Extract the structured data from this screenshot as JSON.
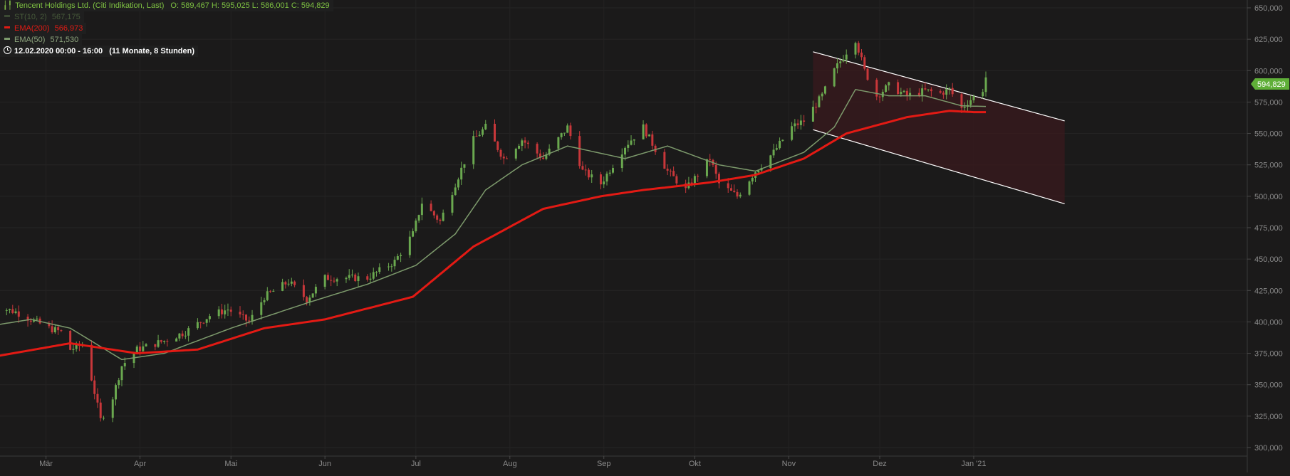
{
  "legend": {
    "title": "Tencent Holdings Ltd. (Citi Indikation, Last)",
    "ohlc": "O: 589,467  H: 595,025  L: 586,001  C: 594,829",
    "st_label": "ST(10, 2)",
    "st_value": "567,175",
    "ema200_label": "EMA(200)",
    "ema200_value": "566,973",
    "ema50_label": "EMA(50)",
    "ema50_value": "571,530",
    "period": "12.02.2020 00:00 - 16:00",
    "period_detail": "(11 Monate, 8 Stunden)"
  },
  "last_price_tag": "594,829",
  "colors": {
    "background": "#1b1a1a",
    "up": "#6aa84f",
    "down": "#c8373a",
    "ema200": "#e31a14",
    "ema50": "#7d9a6c",
    "channel": "#ffffff",
    "channel_fill": "#3a1a1e",
    "price_tag": "#5faf38"
  },
  "icons": {
    "ohlc": "candlestick-icon",
    "period": "clock-icon"
  },
  "chart_data": {
    "type": "candlestick",
    "x_start": "2020-02-12",
    "x_end": "2021-01-05",
    "xlabels": [
      "Mär",
      "Apr",
      "Mai",
      "Jun",
      "Jul",
      "Aug",
      "Sep",
      "Okt",
      "Nov",
      "Dez",
      "Jan '21"
    ],
    "xlabel_dates": [
      "2020-03-01",
      "2020-04-01",
      "2020-05-01",
      "2020-06-01",
      "2020-07-01",
      "2020-08-01",
      "2020-09-01",
      "2020-10-01",
      "2020-11-01",
      "2020-12-01",
      "2021-01-01"
    ],
    "ylim": [
      300000,
      650000
    ],
    "yticks": [
      300000,
      325000,
      350000,
      375000,
      400000,
      425000,
      450000,
      475000,
      500000,
      525000,
      550000,
      575000,
      600000,
      625000,
      650000
    ],
    "ytick_labels": [
      "300,000",
      "325,000",
      "350,000",
      "375,000",
      "400,000",
      "425,000",
      "450,000",
      "475,000",
      "500,000",
      "525,000",
      "550,000",
      "575,000",
      "600,000",
      "625,000",
      "650,000"
    ],
    "grid": true,
    "price_anchors": [
      [
        "2020-02-12",
        413
      ],
      [
        "2020-02-20",
        408
      ],
      [
        "2020-03-02",
        395
      ],
      [
        "2020-03-06",
        392
      ],
      [
        "2020-03-09",
        378
      ],
      [
        "2020-03-13",
        382
      ],
      [
        "2020-03-16",
        355
      ],
      [
        "2020-03-19",
        322
      ],
      [
        "2020-03-23",
        340
      ],
      [
        "2020-03-26",
        365
      ],
      [
        "2020-03-31",
        378
      ],
      [
        "2020-04-09",
        385
      ],
      [
        "2020-04-16",
        392
      ],
      [
        "2020-04-24",
        405
      ],
      [
        "2020-04-30",
        410
      ],
      [
        "2020-05-07",
        400
      ],
      [
        "2020-05-12",
        420
      ],
      [
        "2020-05-20",
        432
      ],
      [
        "2020-05-26",
        418
      ],
      [
        "2020-06-01",
        435
      ],
      [
        "2020-06-15",
        435
      ],
      [
        "2020-06-24",
        448
      ],
      [
        "2020-06-30",
        470
      ],
      [
        "2020-07-03",
        495
      ],
      [
        "2020-07-09",
        480
      ],
      [
        "2020-07-14",
        510
      ],
      [
        "2020-07-20",
        545
      ],
      [
        "2020-07-24",
        555
      ],
      [
        "2020-07-30",
        530
      ],
      [
        "2020-08-05",
        545
      ],
      [
        "2020-08-12",
        530
      ],
      [
        "2020-08-20",
        555
      ],
      [
        "2020-08-25",
        520
      ],
      [
        "2020-08-31",
        510
      ],
      [
        "2020-09-08",
        540
      ],
      [
        "2020-09-14",
        555
      ],
      [
        "2020-09-22",
        520
      ],
      [
        "2020-09-28",
        505
      ],
      [
        "2020-10-06",
        530
      ],
      [
        "2020-10-09",
        510
      ],
      [
        "2020-10-15",
        500
      ],
      [
        "2020-10-21",
        520
      ],
      [
        "2020-10-27",
        535
      ],
      [
        "2020-11-02",
        555
      ],
      [
        "2020-11-06",
        560
      ],
      [
        "2020-11-12",
        580
      ],
      [
        "2020-11-16",
        600
      ],
      [
        "2020-11-20",
        615
      ],
      [
        "2020-11-23",
        625
      ],
      [
        "2020-11-26",
        600
      ],
      [
        "2020-11-30",
        580
      ],
      [
        "2020-12-04",
        588
      ],
      [
        "2020-12-10",
        580
      ],
      [
        "2020-12-16",
        584
      ],
      [
        "2020-12-21",
        582
      ],
      [
        "2020-12-24",
        585
      ],
      [
        "2020-12-28",
        570
      ],
      [
        "2020-12-30",
        575
      ],
      [
        "2021-01-04",
        585
      ],
      [
        "2021-01-05",
        594.8
      ]
    ],
    "price_unit": "thousands",
    "ema200_anchors": [
      [
        "2020-02-12",
        372
      ],
      [
        "2020-03-09",
        383
      ],
      [
        "2020-03-31",
        375
      ],
      [
        "2020-04-20",
        378
      ],
      [
        "2020-05-12",
        395
      ],
      [
        "2020-06-01",
        402
      ],
      [
        "2020-06-30",
        420
      ],
      [
        "2020-07-20",
        460
      ],
      [
        "2020-08-12",
        490
      ],
      [
        "2020-08-31",
        500
      ],
      [
        "2020-09-14",
        505
      ],
      [
        "2020-10-06",
        511
      ],
      [
        "2020-10-21",
        517
      ],
      [
        "2020-11-06",
        530
      ],
      [
        "2020-11-20",
        550
      ],
      [
        "2020-12-10",
        563
      ],
      [
        "2020-12-24",
        568
      ],
      [
        "2021-01-01",
        567
      ],
      [
        "2021-01-05",
        567
      ]
    ],
    "ema50_anchors": [
      [
        "2020-02-12",
        397
      ],
      [
        "2020-02-25",
        402
      ],
      [
        "2020-03-09",
        395
      ],
      [
        "2020-03-26",
        370
      ],
      [
        "2020-04-09",
        375
      ],
      [
        "2020-05-01",
        395
      ],
      [
        "2020-05-26",
        415
      ],
      [
        "2020-06-15",
        430
      ],
      [
        "2020-07-01",
        445
      ],
      [
        "2020-07-14",
        470
      ],
      [
        "2020-07-24",
        505
      ],
      [
        "2020-08-05",
        525
      ],
      [
        "2020-08-20",
        540
      ],
      [
        "2020-09-08",
        530
      ],
      [
        "2020-09-22",
        540
      ],
      [
        "2020-10-09",
        525
      ],
      [
        "2020-10-21",
        520
      ],
      [
        "2020-11-06",
        535
      ],
      [
        "2020-11-16",
        555
      ],
      [
        "2020-11-23",
        585
      ],
      [
        "2020-12-04",
        580
      ],
      [
        "2020-12-16",
        580
      ],
      [
        "2020-12-28",
        572
      ],
      [
        "2021-01-05",
        571.5
      ]
    ],
    "channel": {
      "upper": [
        [
          "2020-11-09",
          615
        ],
        [
          "2021-01-31",
          560
        ]
      ],
      "lower": [
        [
          "2020-11-09",
          553
        ],
        [
          "2021-01-31",
          494
        ]
      ]
    }
  }
}
